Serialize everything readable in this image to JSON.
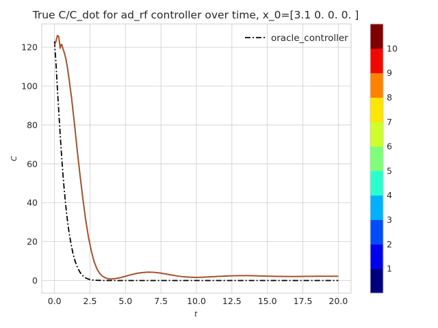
{
  "chart_data": [
    {
      "type": "line",
      "title": "True C/C_dot for ad_rf controller over time, x_0=[3.1 0.  0.  0. ]",
      "xlabel": "t",
      "ylabel": "C",
      "xlim": [
        -0.9,
        20.9
      ],
      "ylim": [
        -6.5,
        132
      ],
      "xticks": [
        "0.0",
        "2.5",
        "5.0",
        "7.5",
        "10.0",
        "12.5",
        "15.0",
        "17.5",
        "20.0"
      ],
      "yticks": [
        "0",
        "20",
        "40",
        "60",
        "80",
        "100",
        "120"
      ],
      "grid": true,
      "legend_position": "top-right",
      "series": [
        {
          "name": "oracle_controller",
          "color": "#000000",
          "style": "dashdot",
          "x": [
            0,
            0.1,
            0.2,
            0.3,
            0.4,
            0.5,
            0.6,
            0.7,
            0.8,
            0.9,
            1.0,
            1.1,
            1.2,
            1.3,
            1.4,
            1.5,
            1.6,
            1.7,
            1.8,
            1.9,
            2.0,
            2.2,
            2.4,
            2.6,
            2.8,
            3.0,
            3.5,
            4.0,
            5.0,
            7.0,
            10.0,
            15.0,
            20.0
          ],
          "y": [
            123,
            112,
            99,
            87,
            75,
            64,
            54,
            45.5,
            38,
            31.5,
            26,
            21.5,
            17.5,
            14,
            11.2,
            9,
            7,
            5.5,
            4.2,
            3.2,
            2.4,
            1.3,
            0.7,
            0.35,
            0.2,
            0.1,
            0.03,
            0.01,
            0,
            0,
            0,
            0,
            0
          ]
        },
        {
          "name": "",
          "color": "#a0522d",
          "style": "solid",
          "x": [
            0,
            0.1,
            0.2,
            0.3,
            0.4,
            0.45,
            0.5,
            0.55,
            0.6,
            0.7,
            0.8,
            0.9,
            1.0,
            1.2,
            1.4,
            1.6,
            1.8,
            2.0,
            2.2,
            2.4,
            2.6,
            2.8,
            3.0,
            3.2,
            3.4,
            3.6,
            3.8,
            4.0,
            4.3,
            4.6,
            5.0,
            5.4,
            5.8,
            6.2,
            6.6,
            7.0,
            7.4,
            7.8,
            8.2,
            8.6,
            9.0,
            9.5,
            10.0,
            10.5,
            11.0,
            11.5,
            12.0,
            12.5,
            13.0,
            13.5,
            14.0,
            14.5,
            15.0,
            15.5,
            16.0,
            16.5,
            17.0,
            17.5,
            18.0,
            18.5,
            19.0,
            19.5,
            20.0
          ],
          "y": [
            121,
            123,
            126,
            125.5,
            119.5,
            121,
            121.5,
            120.5,
            119,
            117,
            114,
            110,
            105,
            94,
            81,
            67,
            54,
            42,
            31,
            22,
            15,
            9.5,
            5.8,
            3.5,
            2.1,
            1.3,
            0.9,
            0.8,
            1.0,
            1.4,
            2.2,
            3.0,
            3.7,
            4.1,
            4.3,
            4.2,
            3.9,
            3.4,
            2.9,
            2.4,
            2.0,
            1.7,
            1.6,
            1.7,
            1.9,
            2.1,
            2.3,
            2.4,
            2.5,
            2.5,
            2.45,
            2.35,
            2.25,
            2.15,
            2.1,
            2.05,
            2.05,
            2.1,
            2.15,
            2.2,
            2.2,
            2.2,
            2.2
          ]
        }
      ]
    },
    {
      "type": "heatmap",
      "title": "",
      "ticks": [
        "1",
        "2",
        "3",
        "4",
        "5",
        "6",
        "7",
        "8",
        "9",
        "10"
      ],
      "colors": [
        "#00007f",
        "#0000f1",
        "#004dff",
        "#00b1ff",
        "#29ffce",
        "#7dff7a",
        "#ceff29",
        "#ffe500",
        "#ff8100",
        "#f10800",
        "#7f0000"
      ]
    }
  ]
}
